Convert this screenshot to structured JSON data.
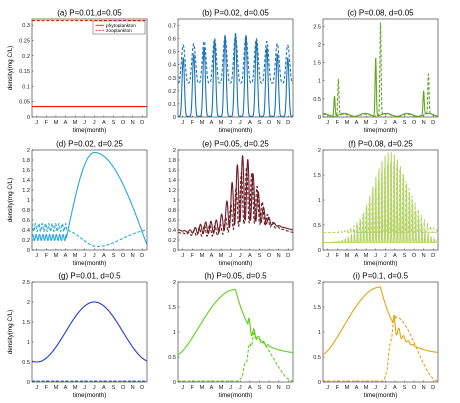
{
  "chart_data": [
    {
      "type": "line",
      "title": "(a) P=0.01,d=0.05",
      "xlabel": "time(month)",
      "ylabel": "density(mg C/L)",
      "x_ticks": [
        "J",
        "F",
        "M",
        "A",
        "M",
        "J",
        "J",
        "A",
        "S",
        "O",
        "N",
        "D"
      ],
      "ylim": [
        0,
        0.32
      ],
      "y_ticks": [
        "0",
        "0.05",
        "0.1",
        "0.15",
        "0.2",
        "0.25",
        "0.3"
      ],
      "color": "#e8141c",
      "legend": {
        "position": "top-right",
        "entries": [
          "phytoplankton",
          "zooplankton"
        ]
      },
      "series": [
        {
          "name": "phytoplankton",
          "style": "solid",
          "shape": "constant",
          "level": 0.034
        },
        {
          "name": "zooplankton",
          "style": "dashed",
          "shape": "constant",
          "level": 0.315
        }
      ]
    },
    {
      "type": "line",
      "title": "(b) P=0.02, d=0.05",
      "xlabel": "time(month)",
      "ylabel": "",
      "x_ticks": [
        "J",
        "F",
        "M",
        "A",
        "M",
        "J",
        "J",
        "A",
        "S",
        "O",
        "N",
        "D"
      ],
      "ylim": [
        0,
        0.75
      ],
      "y_ticks": [
        "0",
        "0.1",
        "0.2",
        "0.3",
        "0.4",
        "0.5",
        "0.6",
        "0.7"
      ],
      "color": "#1a73b8",
      "series": [
        {
          "style": "solid",
          "shape": "spikes",
          "peaks": 11,
          "base": 0.005,
          "top": 0.64,
          "phase": 0
        },
        {
          "style": "dashed",
          "shape": "oscillation",
          "peaks": 11,
          "base": 0.26,
          "top": 0.62,
          "phase": 0.5
        }
      ]
    },
    {
      "type": "line",
      "title": "(c) P=0.08, d=0.05",
      "xlabel": "time(month)",
      "ylabel": "",
      "x_ticks": [
        "J",
        "F",
        "M",
        "A",
        "M",
        "J",
        "J",
        "A",
        "S",
        "O",
        "N",
        "D"
      ],
      "ylim": [
        0,
        2.7
      ],
      "y_ticks": [
        "0",
        "0.5",
        "1",
        "1.5",
        "2",
        "2.5"
      ],
      "color": "#64a423",
      "series": [
        {
          "style": "solid",
          "shape": "bursts",
          "times": [
            1.2,
            5.5,
            10.5
          ],
          "heights": [
            0.55,
            1.6,
            0.65
          ],
          "base": 0.1
        },
        {
          "style": "dashed",
          "shape": "bursts",
          "times": [
            1.6,
            6.0,
            11.0
          ],
          "heights": [
            1.0,
            2.55,
            1.1
          ],
          "base": 0.08
        }
      ]
    },
    {
      "type": "line",
      "title": "(d) P=0.02, d=0.25",
      "xlabel": "time(month)",
      "ylabel": "density(mg C/L)",
      "x_ticks": [
        "J",
        "F",
        "M",
        "A",
        "M",
        "J",
        "J",
        "A",
        "S",
        "O",
        "N",
        "D"
      ],
      "ylim": [
        0,
        2
      ],
      "y_ticks": [
        "0",
        "0.2",
        "0.4",
        "0.6",
        "0.8",
        "1",
        "1.2",
        "1.4",
        "1.6",
        "1.8",
        "2"
      ],
      "color": "#24a8df",
      "series": [
        {
          "style": "solid",
          "shape": "hump",
          "start": 0.25,
          "peak": 1.95,
          "peak_time": 6.5,
          "rise_start": 3.6,
          "end": 0.1,
          "wiggle": 0.06
        },
        {
          "style": "dashed",
          "shape": "trough",
          "start": 0.45,
          "low": 0.07,
          "low_time": 6.8,
          "end": 0.45,
          "wiggle": 0.08
        }
      ]
    },
    {
      "type": "line",
      "title": "(e) P=0.05, d=0.25",
      "xlabel": "time(month)",
      "ylabel": "",
      "x_ticks": [
        "J",
        "F",
        "M",
        "A",
        "M",
        "J",
        "J",
        "A",
        "S",
        "O",
        "N",
        "D"
      ],
      "ylim": [
        0,
        2
      ],
      "y_ticks": [
        "0",
        "0.2",
        "0.4",
        "0.6",
        "0.8",
        "1",
        "1.2",
        "1.4",
        "1.6",
        "1.8",
        "2"
      ],
      "color": "#6b1b24",
      "series": [
        {
          "style": "solid",
          "shape": "growing-oscillation",
          "base": 0.4,
          "top": 1.85,
          "peak_time": 6.8
        },
        {
          "style": "dashed",
          "shape": "growing-oscillation",
          "base": 0.35,
          "top": 1.6,
          "peak_time": 7.1
        }
      ]
    },
    {
      "type": "line",
      "title": "(f) P=0.08, d=0.25",
      "xlabel": "time(month)",
      "ylabel": "",
      "x_ticks": [
        "J",
        "F",
        "M",
        "A",
        "M",
        "J",
        "J",
        "A",
        "S",
        "O",
        "N",
        "D"
      ],
      "ylim": [
        0,
        2
      ],
      "y_ticks": [
        "0",
        "0.5",
        "1",
        "1.5",
        "2"
      ],
      "color": "#b5d46a",
      "series": [
        {
          "style": "solid",
          "shape": "dense-oscillation",
          "base": 0.1,
          "top": 1.9,
          "peak_time": 7.0
        },
        {
          "style": "dashed",
          "shape": "dense-oscillation",
          "base": 0.3,
          "top": 1.7,
          "peak_time": 7.2
        }
      ]
    },
    {
      "type": "line",
      "title": "(g) P=0.01, d=0.5",
      "xlabel": "time(month)",
      "ylabel": "density(mg C/L)",
      "x_ticks": [
        "J",
        "F",
        "M",
        "A",
        "M",
        "J",
        "J",
        "A",
        "S",
        "O",
        "N",
        "D"
      ],
      "ylim": [
        0,
        2.5
      ],
      "y_ticks": [
        "0",
        "0.5",
        "1",
        "1.5",
        "2",
        "2.5"
      ],
      "color": "#1f3fd0",
      "series": [
        {
          "style": "solid",
          "shape": "cosine",
          "min": 0.5,
          "max": 2.0,
          "peak_time": 6.5
        },
        {
          "style": "dashed",
          "shape": "constant",
          "level": 0.02
        }
      ]
    },
    {
      "type": "line",
      "title": "(h) P=0.05, d=0.5",
      "xlabel": "time(month)",
      "ylabel": "",
      "x_ticks": [
        "J",
        "F",
        "M",
        "A",
        "M",
        "J",
        "J",
        "A",
        "S",
        "O",
        "N",
        "D"
      ],
      "ylim": [
        0,
        2
      ],
      "y_ticks": [
        "0",
        "0.5",
        "1",
        "1.5",
        "2"
      ],
      "color": "#5fcf1a",
      "series": [
        {
          "style": "solid",
          "shape": "hump-decay",
          "start": 0.55,
          "peak": 1.85,
          "peak_time": 6.0,
          "end": 0.55
        },
        {
          "style": "dashed",
          "shape": "late-rise",
          "start": 0.02,
          "rise_time": 6.3,
          "peak": 0.9,
          "peak_time": 8.0,
          "end": 0.02
        }
      ]
    },
    {
      "type": "line",
      "title": "(i) P=0.1, d=0.5",
      "xlabel": "time(month)",
      "ylabel": "",
      "x_ticks": [
        "J",
        "F",
        "M",
        "A",
        "M",
        "J",
        "J",
        "A",
        "S",
        "O",
        "N",
        "D"
      ],
      "ylim": [
        0,
        2
      ],
      "y_ticks": [
        "0",
        "0.5",
        "1",
        "1.5",
        "2"
      ],
      "color": "#e0a615",
      "series": [
        {
          "style": "solid",
          "shape": "hump-decay",
          "start": 0.55,
          "peak": 1.9,
          "peak_time": 6.0,
          "end": 0.55
        },
        {
          "style": "dashed",
          "shape": "late-rise",
          "start": 0.02,
          "rise_time": 6.3,
          "peak": 1.3,
          "peak_time": 7.6,
          "end": 0.02
        }
      ]
    }
  ]
}
